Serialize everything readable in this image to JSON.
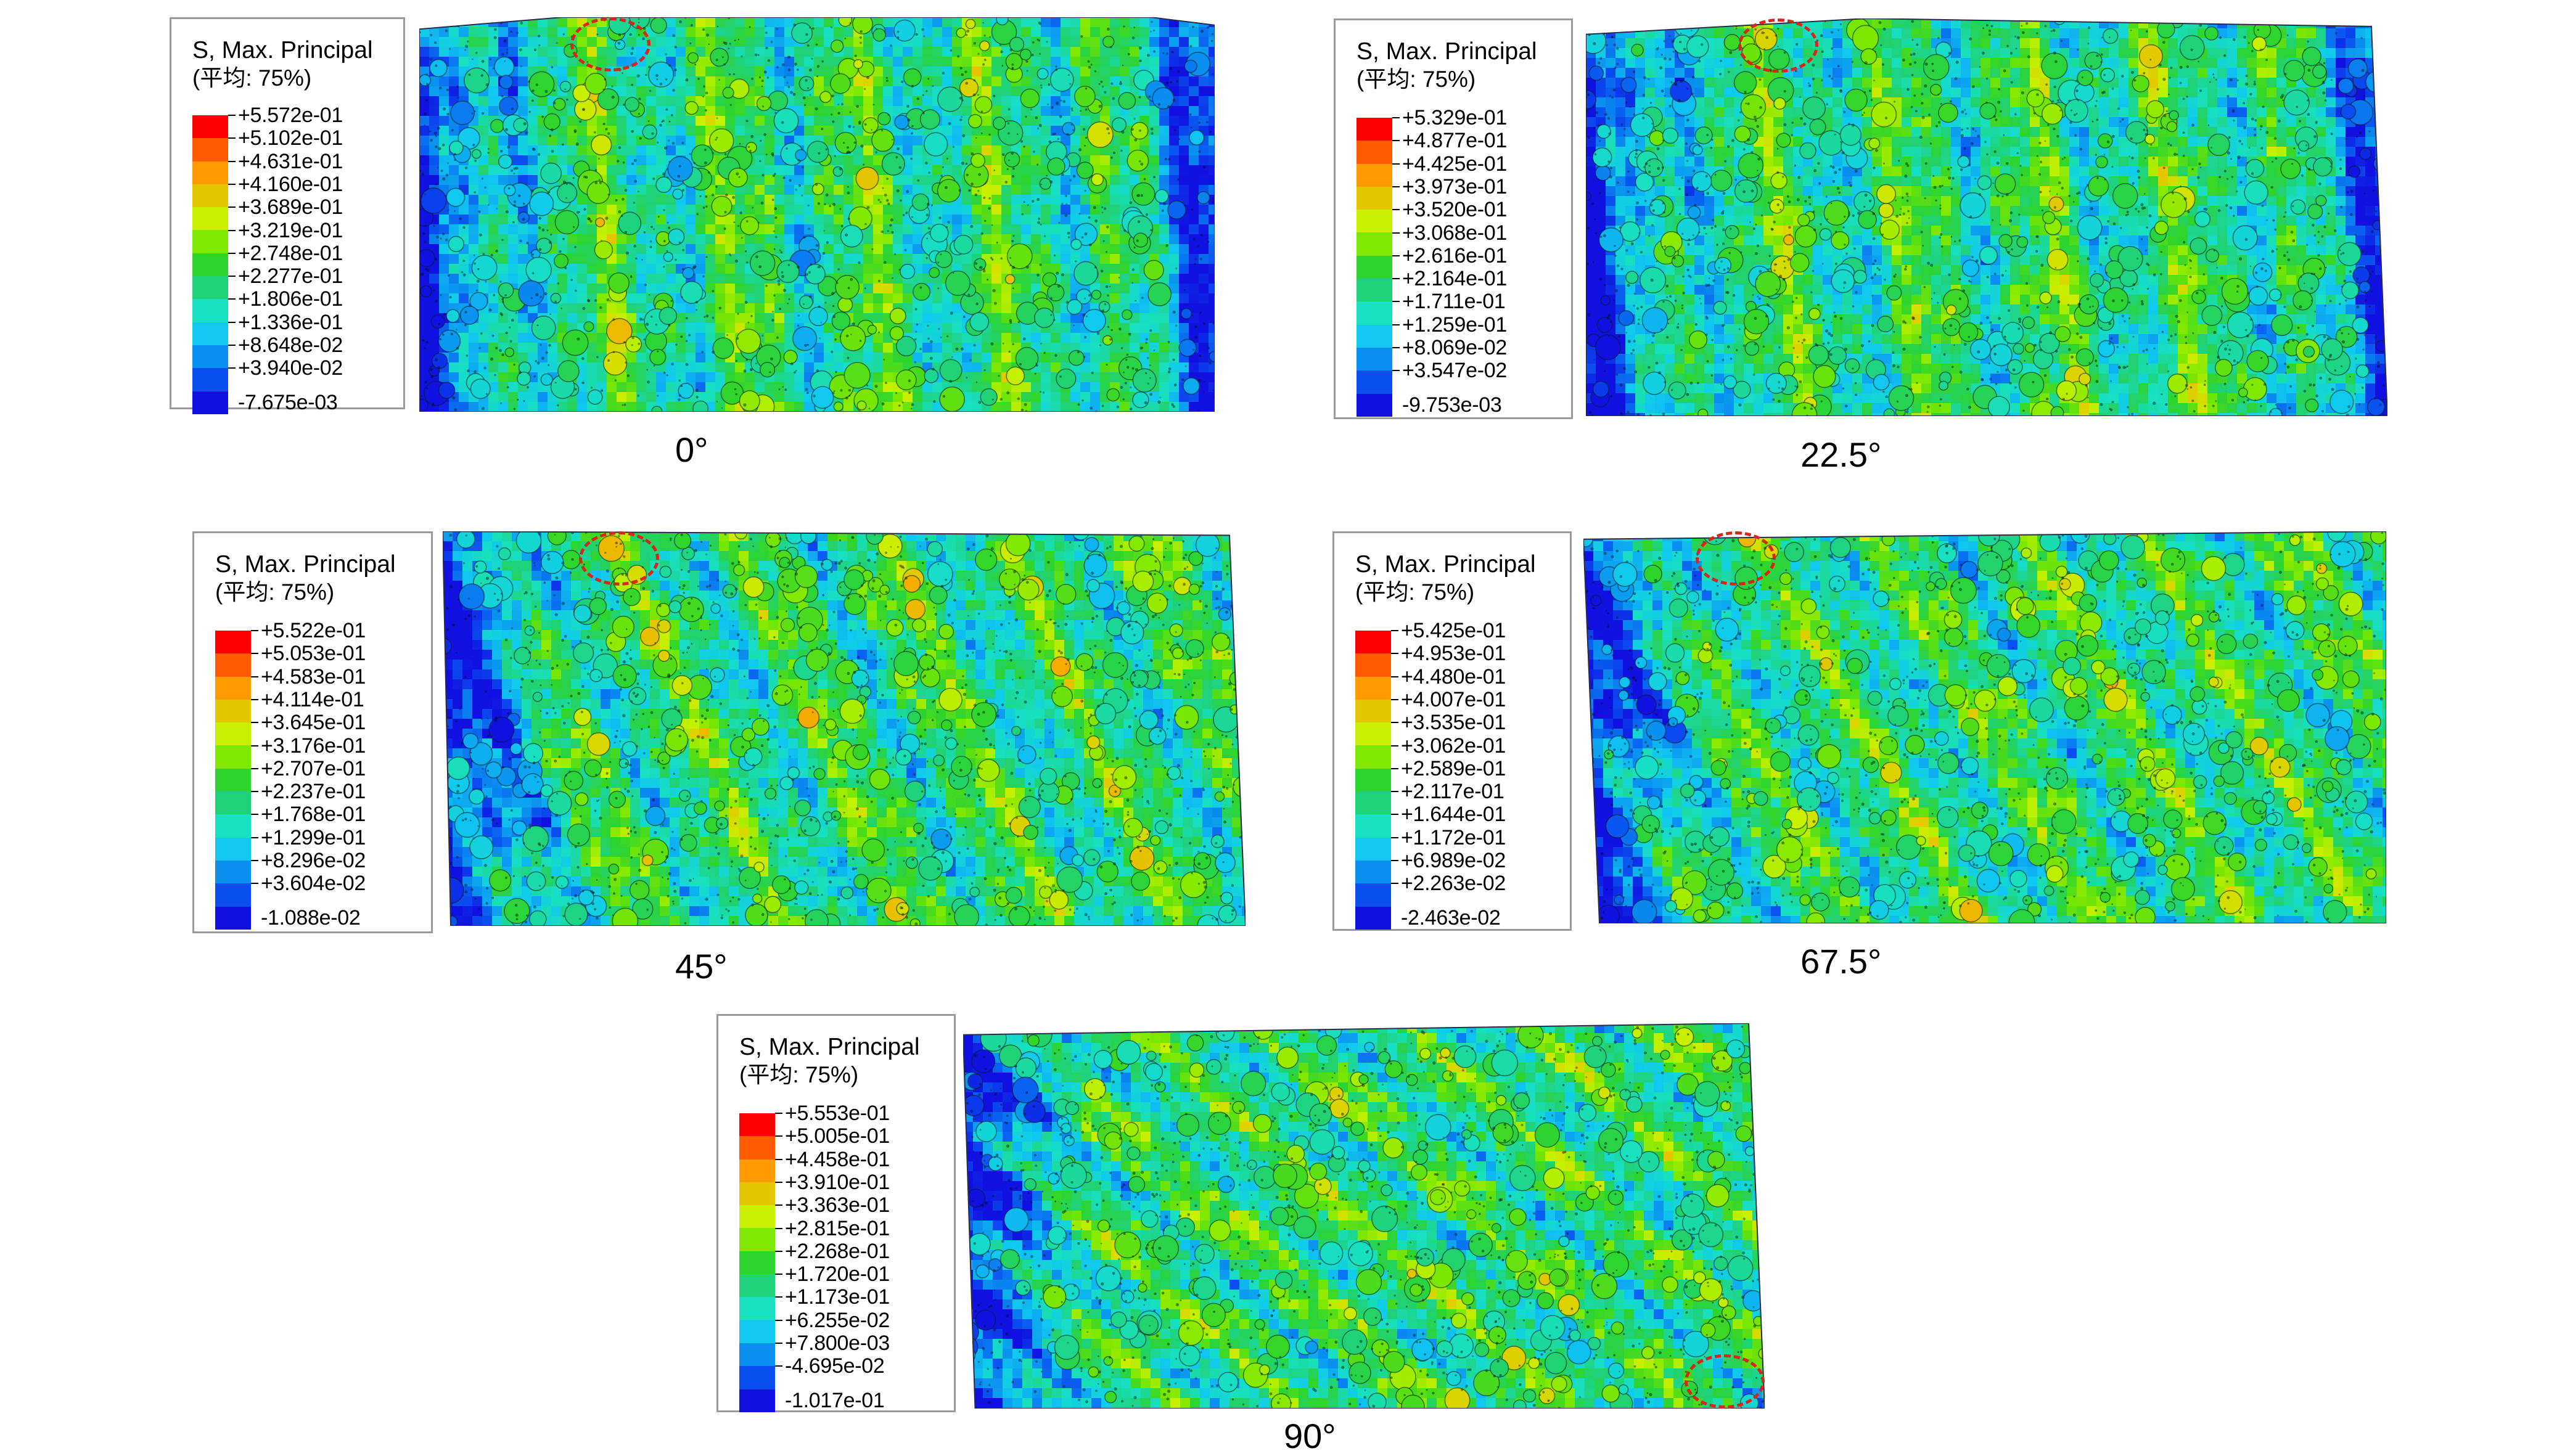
{
  "panels": [
    {
      "angle_label": "0°",
      "legend": {
        "title": "S, Max. Principal",
        "subtitle": "(平均: 75%)",
        "values": [
          "+5.572e-01",
          "+5.102e-01",
          "+4.631e-01",
          "+4.160e-01",
          "+3.689e-01",
          "+3.219e-01",
          "+2.748e-01",
          "+2.277e-01",
          "+1.806e-01",
          "+1.336e-01",
          "+8.648e-02",
          "+3.940e-02",
          "-7.675e-03"
        ]
      }
    },
    {
      "angle_label": "22.5°",
      "legend": {
        "title": "S, Max. Principal",
        "subtitle": "(平均: 75%)",
        "values": [
          "+5.329e-01",
          "+4.877e-01",
          "+4.425e-01",
          "+3.973e-01",
          "+3.520e-01",
          "+3.068e-01",
          "+2.616e-01",
          "+2.164e-01",
          "+1.711e-01",
          "+1.259e-01",
          "+8.069e-02",
          "+3.547e-02",
          "-9.753e-03"
        ]
      }
    },
    {
      "angle_label": "45°",
      "legend": {
        "title": "S, Max. Principal",
        "subtitle": "(平均: 75%)",
        "values": [
          "+5.522e-01",
          "+5.053e-01",
          "+4.583e-01",
          "+4.114e-01",
          "+3.645e-01",
          "+3.176e-01",
          "+2.707e-01",
          "+2.237e-01",
          "+1.768e-01",
          "+1.299e-01",
          "+8.296e-02",
          "+3.604e-02",
          "-1.088e-02"
        ]
      }
    },
    {
      "angle_label": "67.5°",
      "legend": {
        "title": "S, Max. Principal",
        "subtitle": "(平均: 75%)",
        "values": [
          "+5.425e-01",
          "+4.953e-01",
          "+4.480e-01",
          "+4.007e-01",
          "+3.535e-01",
          "+3.062e-01",
          "+2.589e-01",
          "+2.117e-01",
          "+1.644e-01",
          "+1.172e-01",
          "+6.989e-02",
          "+2.263e-02",
          "-2.463e-02"
        ]
      }
    },
    {
      "angle_label": "90°",
      "legend": {
        "title": "S, Max. Principal",
        "subtitle": "(平均: 75%)",
        "values": [
          "+5.553e-01",
          "+5.005e-01",
          "+4.458e-01",
          "+3.910e-01",
          "+3.363e-01",
          "+2.815e-01",
          "+2.268e-01",
          "+1.720e-01",
          "+1.173e-01",
          "+6.255e-02",
          "+7.800e-03",
          "-4.695e-02",
          "-1.017e-01"
        ]
      }
    }
  ],
  "colorbar": [
    "#ff0000",
    "#ff5a00",
    "#ff9a00",
    "#e3c800",
    "#c8f000",
    "#7ee800",
    "#2ed42e",
    "#1fd27a",
    "#18e0c0",
    "#10c8f0",
    "#0a8ef0",
    "#0a4ef0",
    "#1010e0"
  ],
  "colors": {
    "hotspot_marker": "#d9261c",
    "legend_border": "#9a9a9a"
  }
}
